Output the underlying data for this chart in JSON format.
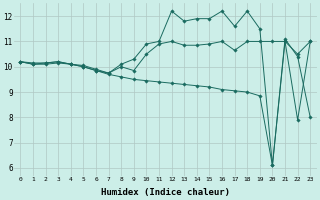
{
  "xlabel": "Humidex (Indice chaleur)",
  "bg_color": "#cceee8",
  "grid_color": "#b0c8c4",
  "line_color": "#1a6b60",
  "xlim": [
    -0.5,
    23.5
  ],
  "ylim": [
    5.7,
    12.5
  ],
  "xticks": [
    0,
    1,
    2,
    3,
    4,
    5,
    6,
    7,
    8,
    9,
    10,
    11,
    12,
    13,
    14,
    15,
    16,
    17,
    18,
    19,
    20,
    21,
    22,
    23
  ],
  "yticks": [
    6,
    7,
    8,
    9,
    10,
    11,
    12
  ],
  "series": {
    "line1_x": [
      0,
      1,
      2,
      3,
      4,
      5,
      6,
      7,
      8,
      9,
      10,
      11,
      12,
      13,
      14,
      15,
      16,
      17,
      18,
      19,
      20,
      21,
      22,
      23
    ],
    "line1_y": [
      10.2,
      10.1,
      10.1,
      10.15,
      10.1,
      10.0,
      9.85,
      9.7,
      9.6,
      9.5,
      9.45,
      9.4,
      9.35,
      9.3,
      9.25,
      9.2,
      9.1,
      9.05,
      9.0,
      8.85,
      6.1,
      11.0,
      7.9,
      11.0
    ],
    "line2_x": [
      0,
      1,
      2,
      3,
      4,
      5,
      6,
      7,
      8,
      9,
      10,
      11,
      12,
      13,
      14,
      15,
      16,
      17,
      18,
      19,
      20,
      21,
      22,
      23
    ],
    "line2_y": [
      10.2,
      10.1,
      10.15,
      10.2,
      10.1,
      10.0,
      9.85,
      9.75,
      10.0,
      9.85,
      10.5,
      10.9,
      11.0,
      10.85,
      10.85,
      10.9,
      11.0,
      10.65,
      11.0,
      11.0,
      11.0,
      11.0,
      10.5,
      11.0
    ],
    "line3_x": [
      0,
      1,
      2,
      3,
      4,
      5,
      6,
      7,
      8,
      9,
      10,
      11,
      12,
      13,
      14,
      15,
      16,
      17,
      18,
      19,
      20,
      21,
      22,
      23
    ],
    "line3_y": [
      10.2,
      10.15,
      10.15,
      10.2,
      10.1,
      10.05,
      9.9,
      9.75,
      10.1,
      10.3,
      10.9,
      11.0,
      12.2,
      11.8,
      11.9,
      11.9,
      12.2,
      11.6,
      12.2,
      11.5,
      6.1,
      11.1,
      10.4,
      8.0
    ]
  }
}
